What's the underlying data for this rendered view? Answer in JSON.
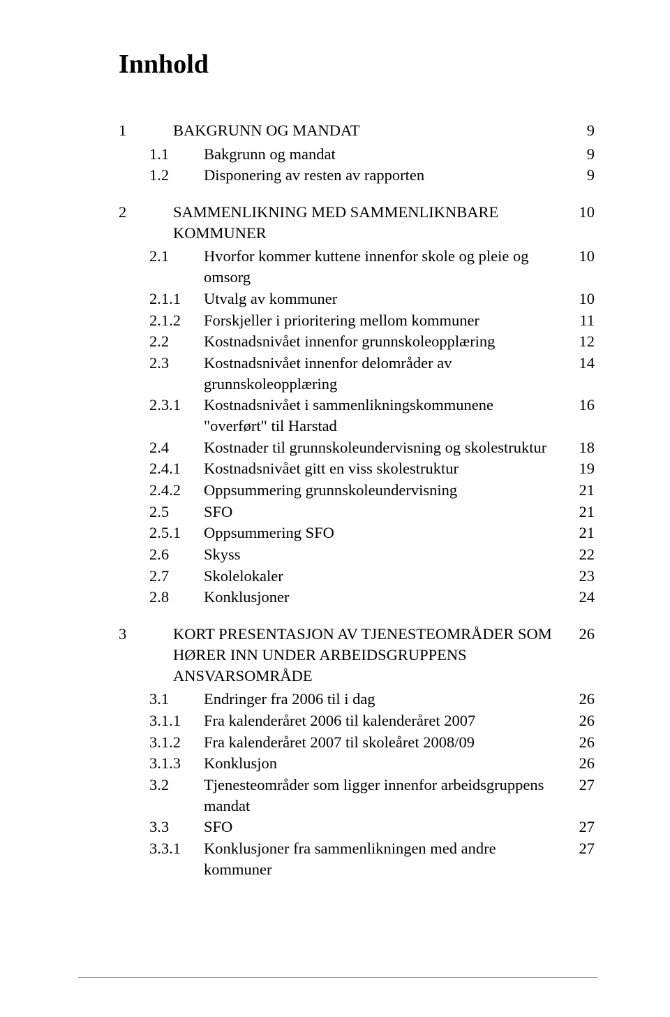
{
  "title": "Innhold",
  "entries": [
    {
      "indent": 1,
      "num": "1",
      "text": "BAKGRUNN OG MANDAT",
      "page": "9",
      "gapBefore": ""
    },
    {
      "indent": 2,
      "num": "1.1",
      "text": "Bakgrunn og mandat",
      "page": "9",
      "gapBefore": "sm"
    },
    {
      "indent": 2,
      "num": "1.2",
      "text": "Disponering av resten av rapporten",
      "page": "9",
      "gapBefore": ""
    },
    {
      "indent": 1,
      "num": "2",
      "text": "SAMMENLIKNING MED SAMMENLIKNBARE KOMMUNER",
      "page": "10",
      "gapBefore": "lg"
    },
    {
      "indent": 2,
      "num": "2.1",
      "text": "Hvorfor kommer kuttene innenfor skole og pleie og omsorg",
      "page": "10",
      "gapBefore": "sm"
    },
    {
      "indent": 3,
      "num": "2.1.1",
      "text": "Utvalg av kommuner",
      "page": "10",
      "gapBefore": ""
    },
    {
      "indent": 3,
      "num": "2.1.2",
      "text": "Forskjeller i prioritering mellom kommuner",
      "page": "11",
      "gapBefore": ""
    },
    {
      "indent": 2,
      "num": "2.2",
      "text": "Kostnadsnivået innenfor grunnskoleopplæring",
      "page": "12",
      "gapBefore": ""
    },
    {
      "indent": 2,
      "num": "2.3",
      "text": "Kostnadsnivået innenfor delområder av grunnskoleopplæring",
      "page": "14",
      "gapBefore": ""
    },
    {
      "indent": 3,
      "num": "2.3.1",
      "text": "Kostnadsnivået i sammenlikningskommunene \"overført\" til Harstad",
      "page": "16",
      "gapBefore": ""
    },
    {
      "indent": 2,
      "num": "2.4",
      "text": "Kostnader til grunnskoleundervisning og skolestruktur",
      "page": "18",
      "gapBefore": ""
    },
    {
      "indent": 3,
      "num": "2.4.1",
      "text": "Kostnadsnivået gitt en viss skolestruktur",
      "page": "19",
      "gapBefore": ""
    },
    {
      "indent": 3,
      "num": "2.4.2",
      "text": "Oppsummering grunnskoleundervisning",
      "page": "21",
      "gapBefore": ""
    },
    {
      "indent": 2,
      "num": "2.5",
      "text": "SFO",
      "page": "21",
      "gapBefore": ""
    },
    {
      "indent": 3,
      "num": "2.5.1",
      "text": "Oppsummering SFO",
      "page": "21",
      "gapBefore": ""
    },
    {
      "indent": 2,
      "num": "2.6",
      "text": "Skyss",
      "page": "22",
      "gapBefore": ""
    },
    {
      "indent": 2,
      "num": "2.7",
      "text": "Skolelokaler",
      "page": "23",
      "gapBefore": ""
    },
    {
      "indent": 2,
      "num": "2.8",
      "text": "Konklusjoner",
      "page": "24",
      "gapBefore": ""
    },
    {
      "indent": 1,
      "num": "3",
      "text": "KORT PRESENTASJON AV TJENESTEOMRÅDER SOM HØRER INN UNDER ARBEIDSGRUPPENS ANSVARSOMRÅDE",
      "page": "26",
      "gapBefore": "lg"
    },
    {
      "indent": 2,
      "num": "3.1",
      "text": "Endringer fra 2006 til i dag",
      "page": "26",
      "gapBefore": "sm"
    },
    {
      "indent": 3,
      "num": "3.1.1",
      "text": "Fra kalenderåret 2006 til kalenderåret 2007",
      "page": "26",
      "gapBefore": ""
    },
    {
      "indent": 3,
      "num": "3.1.2",
      "text": "Fra kalenderåret 2007 til skoleåret 2008/09",
      "page": "26",
      "gapBefore": ""
    },
    {
      "indent": 3,
      "num": "3.1.3",
      "text": "Konklusjon",
      "page": "26",
      "gapBefore": ""
    },
    {
      "indent": 2,
      "num": "3.2",
      "text": "Tjenesteområder som ligger innenfor arbeidsgruppens mandat",
      "page": "27",
      "gapBefore": ""
    },
    {
      "indent": 2,
      "num": "3.3",
      "text": "SFO",
      "page": "27",
      "gapBefore": ""
    },
    {
      "indent": 3,
      "num": "3.3.1",
      "text": "Konklusjoner fra sammenlikningen med andre kommuner",
      "page": "27",
      "gapBefore": ""
    }
  ],
  "colors": {
    "text": "#000000",
    "background": "#ffffff",
    "footerLine": "#999999"
  },
  "typography": {
    "titleFontSize": 38,
    "bodyFontSize": 22.5,
    "fontFamily": "Times New Roman"
  }
}
